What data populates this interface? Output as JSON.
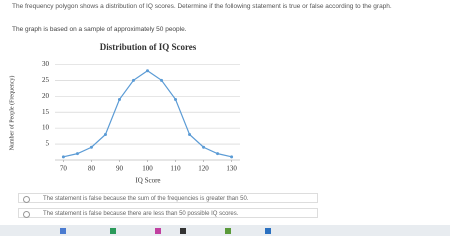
{
  "question": {
    "prompt": "The frequency polygon shows a distribution of IQ scores. Determine if the following statement is true or false according to the graph.",
    "statement": "The graph is based on a sample of approximately 50 people."
  },
  "chart_data": {
    "type": "line",
    "title": "Distribution of IQ Scores",
    "x_label": "IQ Score",
    "y_label": "Number of People (Frequency)",
    "x": [
      70,
      75,
      80,
      85,
      90,
      95,
      100,
      105,
      110,
      115,
      120,
      125,
      130
    ],
    "series": [
      {
        "name": "IQ Scores",
        "color": "#5b9bd5",
        "values": [
          1,
          2,
          4,
          8,
          19,
          25,
          28,
          25,
          19,
          8,
          4,
          2,
          1
        ]
      }
    ],
    "xlim": [
      67,
      133
    ],
    "xticks": [
      70,
      80,
      90,
      100,
      110,
      120,
      130
    ],
    "ylim": [
      0,
      32
    ],
    "yticks": [
      5,
      10,
      15,
      20,
      25,
      30
    ],
    "grid": true
  },
  "options": [
    "The statement is false because the sum of the frequencies is greater than 50.",
    "The statement is false because there are less than 50 possible IQ scores."
  ]
}
